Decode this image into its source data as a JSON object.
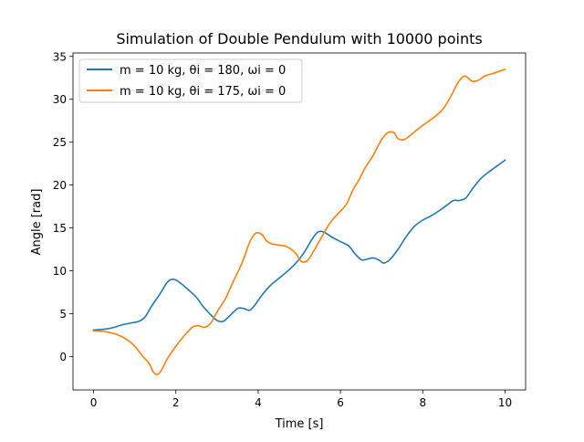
{
  "chart_data": {
    "type": "line",
    "title": "Simulation of Double Pendulum with 10000 points",
    "xlabel": "Time [s]",
    "ylabel": "Angle [rad]",
    "xlim": [
      -0.5,
      10.5
    ],
    "ylim": [
      -3.9,
      35.4
    ],
    "xticks": [
      0,
      2,
      4,
      6,
      8,
      10
    ],
    "yticks": [
      0,
      5,
      10,
      15,
      20,
      25,
      30,
      35
    ],
    "grid": false,
    "legend": "top-left",
    "series": [
      {
        "name": "m = 10 kg, θi = 180, ωi = 0",
        "color": "#1f77b4",
        "x": [
          0,
          0.3,
          0.5,
          0.7,
          0.9,
          1.1,
          1.25,
          1.4,
          1.6,
          1.8,
          1.95,
          2.1,
          2.3,
          2.5,
          2.65,
          2.8,
          3.0,
          3.15,
          3.3,
          3.5,
          3.65,
          3.8,
          3.95,
          4.1,
          4.3,
          4.5,
          4.7,
          4.9,
          5.1,
          5.3,
          5.45,
          5.6,
          5.8,
          6.0,
          6.2,
          6.35,
          6.5,
          6.6,
          6.8,
          6.95,
          7.05,
          7.2,
          7.4,
          7.6,
          7.8,
          8.0,
          8.2,
          8.4,
          8.6,
          8.75,
          8.9,
          9.05,
          9.2,
          9.4,
          9.6,
          9.8,
          10.0
        ],
        "values": [
          3.1,
          3.2,
          3.4,
          3.7,
          3.9,
          4.1,
          4.6,
          5.8,
          7.2,
          8.7,
          9.0,
          8.6,
          7.8,
          6.9,
          5.9,
          5.1,
          4.2,
          4.1,
          4.7,
          5.6,
          5.6,
          5.4,
          6.2,
          7.2,
          8.3,
          9.1,
          9.9,
          10.8,
          12.0,
          13.6,
          14.5,
          14.5,
          13.9,
          13.4,
          12.9,
          12.0,
          11.3,
          11.3,
          11.5,
          11.2,
          10.9,
          11.3,
          12.5,
          14.0,
          15.2,
          15.9,
          16.4,
          17.0,
          17.7,
          18.2,
          18.2,
          18.5,
          19.5,
          20.7,
          21.5,
          22.2,
          22.9
        ]
      },
      {
        "name": "m = 10 kg, θi = 175, ωi = 0",
        "color": "#ff7f0e",
        "x": [
          0,
          0.3,
          0.6,
          0.8,
          1.0,
          1.2,
          1.35,
          1.45,
          1.55,
          1.65,
          1.8,
          2.0,
          2.2,
          2.4,
          2.55,
          2.7,
          2.85,
          3.0,
          3.2,
          3.4,
          3.6,
          3.8,
          3.95,
          4.1,
          4.2,
          4.35,
          4.5,
          4.7,
          4.9,
          5.05,
          5.2,
          5.35,
          5.55,
          5.75,
          5.95,
          6.15,
          6.3,
          6.45,
          6.6,
          6.8,
          7.0,
          7.15,
          7.3,
          7.4,
          7.55,
          7.7,
          7.9,
          8.1,
          8.3,
          8.5,
          8.7,
          8.85,
          9.0,
          9.1,
          9.2,
          9.35,
          9.5,
          9.7,
          10.0
        ],
        "values": [
          3.0,
          2.9,
          2.5,
          2.0,
          1.2,
          0.0,
          -0.8,
          -1.8,
          -2.1,
          -1.6,
          -0.2,
          1.2,
          2.4,
          3.4,
          3.6,
          3.4,
          3.9,
          5.2,
          6.7,
          8.8,
          10.8,
          13.4,
          14.4,
          14.2,
          13.5,
          13.1,
          13.0,
          12.8,
          12.1,
          11.1,
          11.2,
          12.3,
          14.0,
          15.6,
          16.7,
          17.8,
          19.4,
          20.6,
          22.0,
          23.5,
          25.3,
          26.1,
          26.1,
          25.4,
          25.3,
          25.8,
          26.6,
          27.3,
          28.0,
          28.9,
          30.5,
          31.9,
          32.7,
          32.5,
          32.1,
          32.2,
          32.7,
          33.0,
          33.5
        ]
      }
    ]
  }
}
